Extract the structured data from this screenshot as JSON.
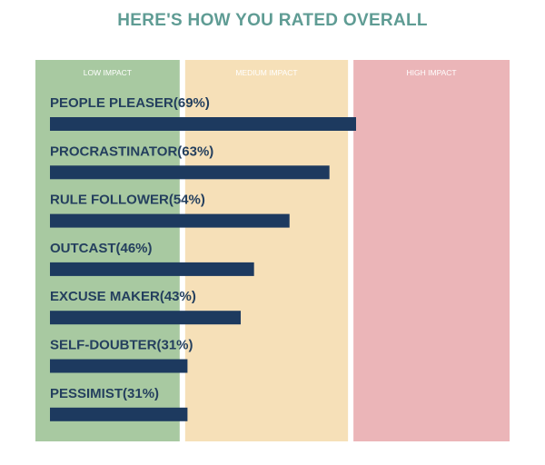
{
  "chart_data": {
    "type": "bar",
    "orientation": "horizontal",
    "title": "HERE'S HOW YOU RATED OVERALL",
    "zones": [
      {
        "label": "LOW IMPACT",
        "range": [
          0,
          0.31
        ],
        "color": "#a8c9a1"
      },
      {
        "label": "MEDIUM IMPACT",
        "range": [
          0.31,
          0.665
        ],
        "color": "#f6e0b8"
      },
      {
        "label": "HIGH IMPACT",
        "range": [
          0.665,
          1.0
        ],
        "color": "#ebb5b8"
      }
    ],
    "categories": [
      "PEOPLE PLEASER",
      "PROCRASTINATOR",
      "RULE FOLLOWER",
      "OUTCAST",
      "EXCUSE MAKER",
      "SELF-DOUBTER",
      "PESSIMIST"
    ],
    "values": [
      69,
      63,
      54,
      46,
      43,
      31,
      31
    ],
    "bar_labels": [
      "PEOPLE PLEASER(69%)",
      "PROCRASTINATOR(63%)",
      "RULE FOLLOWER(54%)",
      "OUTCAST(46%)",
      "EXCUSE MAKER(43%)",
      "SELF-DOUBTER(31%)",
      "PESSIMIST(31%)"
    ],
    "xlim": [
      0,
      100
    ],
    "grid": false,
    "colors": {
      "bar": "#1d3a5f",
      "label": "#243f5e",
      "title": "#5f9c94"
    }
  }
}
